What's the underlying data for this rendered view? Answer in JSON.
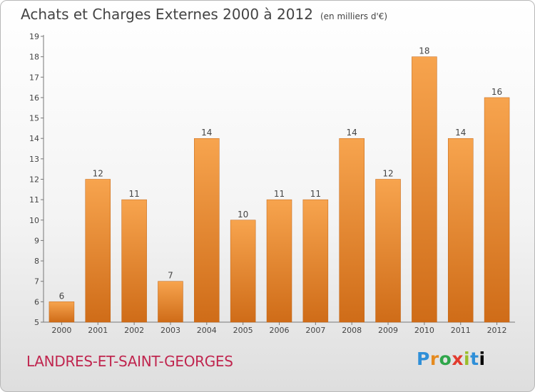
{
  "header": {
    "title": "Achats et Charges Externes 2000 à 2012",
    "unit": "(en milliers d'€)"
  },
  "footer": {
    "commune": "LANDRES-ET-SAINT-GEORGES",
    "logo": "Proxiti",
    "logo_letters": [
      "P",
      "r",
      "o",
      "x",
      "i",
      "t",
      "i"
    ]
  },
  "colors": {
    "bar_light": "#f7a44e",
    "bar_dark": "#cf6c18",
    "commune_text": "#c0264f"
  },
  "chart_data": {
    "type": "bar",
    "categories": [
      "2000",
      "2001",
      "2002",
      "2003",
      "2004",
      "2005",
      "2006",
      "2007",
      "2008",
      "2009",
      "2010",
      "2011",
      "2012"
    ],
    "values": [
      6,
      12,
      11,
      7,
      14,
      10,
      11,
      11,
      14,
      12,
      18,
      14,
      16
    ],
    "data_labels": [
      "6",
      "12",
      "11",
      "7",
      "14",
      "10",
      "11",
      "11",
      "14",
      "12",
      "18",
      "14",
      "16"
    ],
    "yticks": [
      "5",
      "6",
      "7",
      "8",
      "9",
      "10",
      "11",
      "12",
      "13",
      "14",
      "15",
      "16",
      "17",
      "18",
      "19"
    ],
    "ylim": [
      5,
      19
    ],
    "grid": false
  }
}
